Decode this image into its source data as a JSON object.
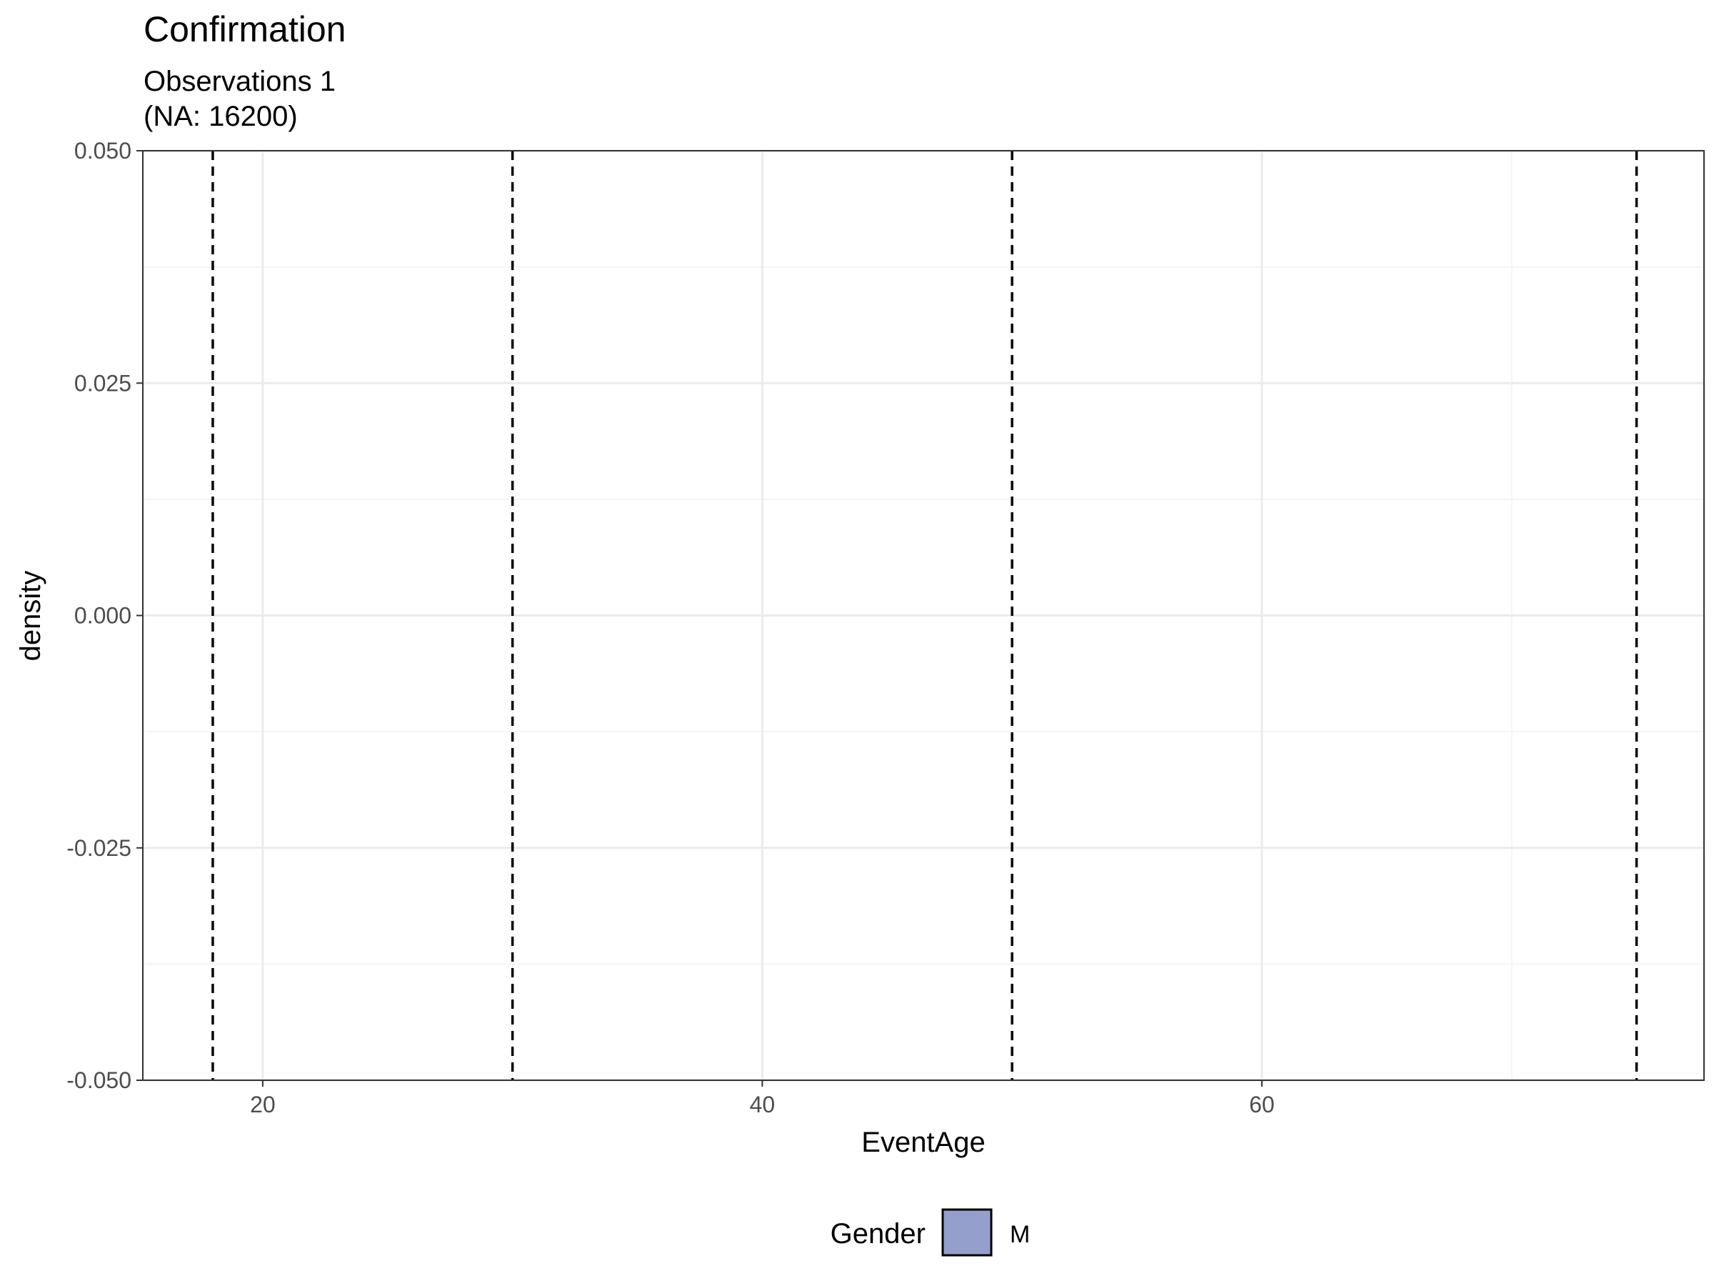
{
  "chart_data": {
    "type": "density",
    "title": "Confirmation",
    "subtitle_lines": [
      "Observations 1",
      "(NA: 16200)"
    ],
    "xlabel": "EventAge",
    "ylabel": "density",
    "xlim": [
      15.2,
      77.7
    ],
    "ylim": [
      -0.05,
      0.05
    ],
    "x_ticks": [
      20,
      40,
      60
    ],
    "x_tick_labels": [
      "20",
      "40",
      "60"
    ],
    "x_minor_ticks": [
      30,
      50,
      70
    ],
    "y_ticks": [
      -0.05,
      -0.025,
      0,
      0.025,
      0.05
    ],
    "y_tick_labels": [
      "-0.050",
      "-0.025",
      "0.000",
      "0.025",
      "0.050"
    ],
    "y_minor_ticks": [
      -0.0375,
      -0.0125,
      0.0125,
      0.0375
    ],
    "grid": true,
    "reference_lines": [
      18,
      30,
      50,
      75
    ],
    "reference_line_style": "dashed",
    "series": [
      {
        "name": "M",
        "values": [],
        "color": "#949fcb"
      }
    ],
    "legend": {
      "title": "Gender",
      "position": "bottom",
      "entries": [
        {
          "label": "M",
          "color": "#949fcb"
        }
      ]
    }
  }
}
